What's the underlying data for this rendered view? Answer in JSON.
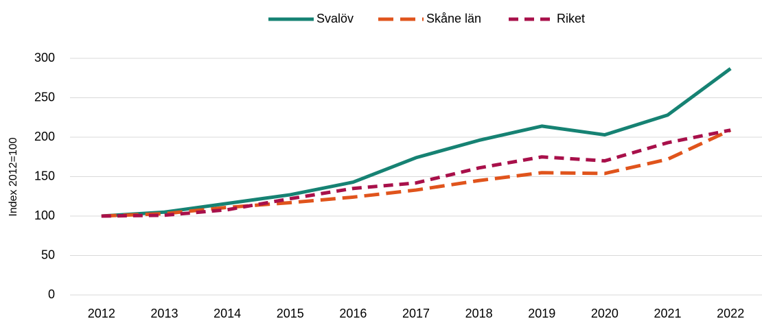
{
  "chart_data": {
    "type": "line",
    "y_label": "Index 2012=100",
    "categories": [
      "2012",
      "2013",
      "2014",
      "2015",
      "2016",
      "2017",
      "2018",
      "2019",
      "2020",
      "2021",
      "2022"
    ],
    "series": [
      {
        "name": "Svalöv",
        "color": "#168273",
        "values": [
          100,
          105,
          116,
          127,
          143,
          174,
          196,
          214,
          203,
          228,
          287
        ]
      },
      {
        "name": "Skåne län",
        "color": "#e0541c",
        "values": [
          100,
          103,
          111,
          117,
          124,
          133,
          145,
          155,
          154,
          172,
          209
        ]
      },
      {
        "name": "Riket",
        "color": "#a8104a",
        "values": [
          100,
          101,
          108,
          122,
          135,
          142,
          161,
          175,
          170,
          193,
          209
        ]
      }
    ],
    "ylim": [
      0,
      300
    ],
    "yticks": [
      0,
      50,
      100,
      150,
      200,
      250,
      300
    ],
    "grid": true,
    "legend": "top"
  }
}
